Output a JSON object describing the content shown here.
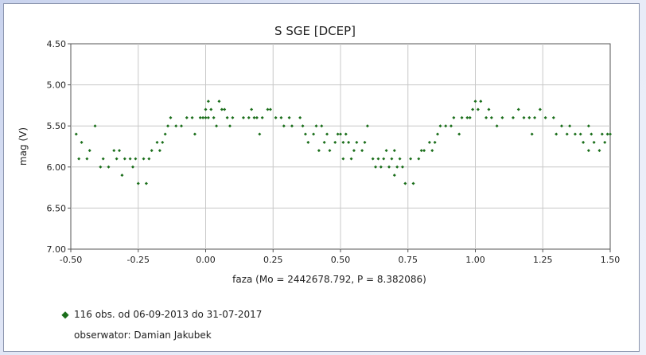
{
  "chart_data": {
    "type": "scatter",
    "title": "S SGE [DCEP]",
    "xlabel": "faza (Mo = 2442678.792, P = 8.382086)",
    "ylabel": "mag (V)",
    "xlim": [
      -0.5,
      1.5
    ],
    "ylim": [
      4.5,
      7.0
    ],
    "y_inverted": true,
    "grid": true,
    "x_ticks": [
      "-0.50",
      "-0.25",
      "0.00",
      "0.25",
      "0.50",
      "0.75",
      "1.00",
      "1.25",
      "1.50"
    ],
    "y_ticks": [
      "4.50",
      "5.00",
      "5.50",
      "6.00",
      "6.50",
      "7.00"
    ],
    "marker_color": "#1a6e1a",
    "series": [
      {
        "name": "116 obs. od 06-09-2013 do 31-07-2017",
        "points": [
          [
            0.0,
            5.4
          ],
          [
            0.0,
            5.3
          ],
          [
            0.01,
            5.2
          ],
          [
            0.01,
            5.4
          ],
          [
            0.02,
            5.3
          ],
          [
            0.03,
            5.4
          ],
          [
            0.04,
            5.5
          ],
          [
            0.05,
            5.2
          ],
          [
            0.06,
            5.3
          ],
          [
            0.07,
            5.3
          ],
          [
            0.08,
            5.4
          ],
          [
            0.09,
            5.5
          ],
          [
            0.1,
            5.4
          ],
          [
            0.14,
            5.4
          ],
          [
            0.16,
            5.4
          ],
          [
            0.17,
            5.3
          ],
          [
            0.18,
            5.4
          ],
          [
            0.19,
            5.4
          ],
          [
            0.2,
            5.6
          ],
          [
            0.21,
            5.4
          ],
          [
            0.23,
            5.3
          ],
          [
            0.24,
            5.3
          ],
          [
            0.26,
            5.4
          ],
          [
            0.28,
            5.4
          ],
          [
            0.29,
            5.5
          ],
          [
            0.31,
            5.4
          ],
          [
            0.32,
            5.5
          ],
          [
            0.35,
            5.4
          ],
          [
            0.36,
            5.5
          ],
          [
            0.37,
            5.6
          ],
          [
            0.38,
            5.7
          ],
          [
            0.4,
            5.6
          ],
          [
            0.41,
            5.5
          ],
          [
            0.42,
            5.8
          ],
          [
            0.43,
            5.5
          ],
          [
            0.44,
            5.7
          ],
          [
            0.45,
            5.6
          ],
          [
            0.46,
            5.8
          ],
          [
            0.48,
            5.7
          ],
          [
            0.49,
            5.6
          ],
          [
            0.5,
            5.6
          ],
          [
            0.51,
            5.7
          ],
          [
            0.51,
            5.9
          ],
          [
            0.52,
            5.6
          ],
          [
            0.53,
            5.7
          ],
          [
            0.54,
            5.9
          ],
          [
            0.55,
            5.8
          ],
          [
            0.56,
            5.7
          ],
          [
            0.58,
            5.8
          ],
          [
            0.59,
            5.7
          ],
          [
            0.6,
            5.5
          ],
          [
            0.62,
            5.9
          ],
          [
            0.63,
            6.0
          ],
          [
            0.64,
            5.9
          ],
          [
            0.65,
            6.0
          ],
          [
            0.66,
            5.9
          ],
          [
            0.67,
            5.8
          ],
          [
            0.68,
            6.0
          ],
          [
            0.69,
            5.9
          ],
          [
            0.7,
            5.8
          ],
          [
            0.7,
            6.1
          ],
          [
            0.71,
            6.0
          ],
          [
            0.72,
            5.9
          ],
          [
            0.73,
            6.0
          ],
          [
            0.74,
            6.2
          ],
          [
            0.76,
            5.9
          ],
          [
            0.77,
            6.2
          ],
          [
            0.79,
            5.9
          ],
          [
            0.8,
            5.8
          ],
          [
            0.81,
            5.8
          ],
          [
            0.83,
            5.7
          ],
          [
            0.84,
            5.8
          ],
          [
            0.85,
            5.7
          ],
          [
            0.86,
            5.6
          ],
          [
            0.87,
            5.5
          ],
          [
            0.89,
            5.5
          ],
          [
            0.91,
            5.5
          ],
          [
            0.92,
            5.4
          ],
          [
            0.94,
            5.6
          ],
          [
            0.95,
            5.4
          ],
          [
            0.97,
            5.4
          ],
          [
            0.98,
            5.4
          ],
          [
            0.99,
            5.3
          ],
          [
            1.0,
            5.2
          ],
          [
            1.01,
            5.3
          ],
          [
            1.02,
            5.2
          ],
          [
            1.04,
            5.4
          ],
          [
            1.05,
            5.3
          ],
          [
            1.06,
            5.4
          ],
          [
            1.08,
            5.5
          ],
          [
            1.1,
            5.4
          ],
          [
            1.14,
            5.4
          ],
          [
            1.16,
            5.3
          ],
          [
            1.18,
            5.4
          ],
          [
            1.2,
            5.4
          ],
          [
            1.21,
            5.6
          ],
          [
            1.22,
            5.4
          ],
          [
            1.24,
            5.3
          ],
          [
            1.26,
            5.4
          ],
          [
            1.29,
            5.4
          ],
          [
            1.3,
            5.6
          ],
          [
            1.32,
            5.5
          ],
          [
            1.34,
            5.6
          ],
          [
            1.35,
            5.5
          ],
          [
            1.37,
            5.6
          ],
          [
            1.39,
            5.6
          ],
          [
            1.4,
            5.7
          ],
          [
            1.42,
            5.5
          ],
          [
            1.42,
            5.8
          ],
          [
            1.43,
            5.6
          ],
          [
            1.44,
            5.7
          ],
          [
            1.46,
            5.8
          ],
          [
            1.47,
            5.6
          ],
          [
            1.48,
            5.7
          ],
          [
            1.49,
            5.6
          ],
          [
            1.5,
            5.6
          ],
          [
            -0.48,
            5.6
          ],
          [
            -0.47,
            5.9
          ],
          [
            -0.46,
            5.7
          ],
          [
            -0.44,
            5.9
          ],
          [
            -0.43,
            5.8
          ],
          [
            -0.41,
            5.5
          ],
          [
            -0.39,
            6.0
          ],
          [
            -0.38,
            5.9
          ],
          [
            -0.36,
            6.0
          ],
          [
            -0.34,
            5.8
          ],
          [
            -0.33,
            5.9
          ],
          [
            -0.32,
            5.8
          ],
          [
            -0.31,
            6.1
          ],
          [
            -0.3,
            5.9
          ],
          [
            -0.28,
            5.9
          ],
          [
            -0.27,
            6.0
          ],
          [
            -0.26,
            5.9
          ],
          [
            -0.25,
            6.2
          ],
          [
            -0.23,
            5.9
          ],
          [
            -0.22,
            6.2
          ],
          [
            -0.21,
            5.9
          ],
          [
            -0.2,
            5.8
          ],
          [
            -0.18,
            5.7
          ],
          [
            -0.17,
            5.8
          ],
          [
            -0.16,
            5.7
          ],
          [
            -0.15,
            5.6
          ],
          [
            -0.14,
            5.5
          ],
          [
            -0.13,
            5.4
          ],
          [
            -0.11,
            5.5
          ],
          [
            -0.09,
            5.5
          ],
          [
            -0.07,
            5.4
          ],
          [
            -0.05,
            5.4
          ],
          [
            -0.04,
            5.6
          ],
          [
            -0.02,
            5.4
          ],
          [
            -0.01,
            5.4
          ]
        ]
      }
    ]
  },
  "legend": {
    "entry": "116 obs. od 06-09-2013 do 31-07-2017",
    "observer": "obserwator: Damian Jakubek"
  }
}
